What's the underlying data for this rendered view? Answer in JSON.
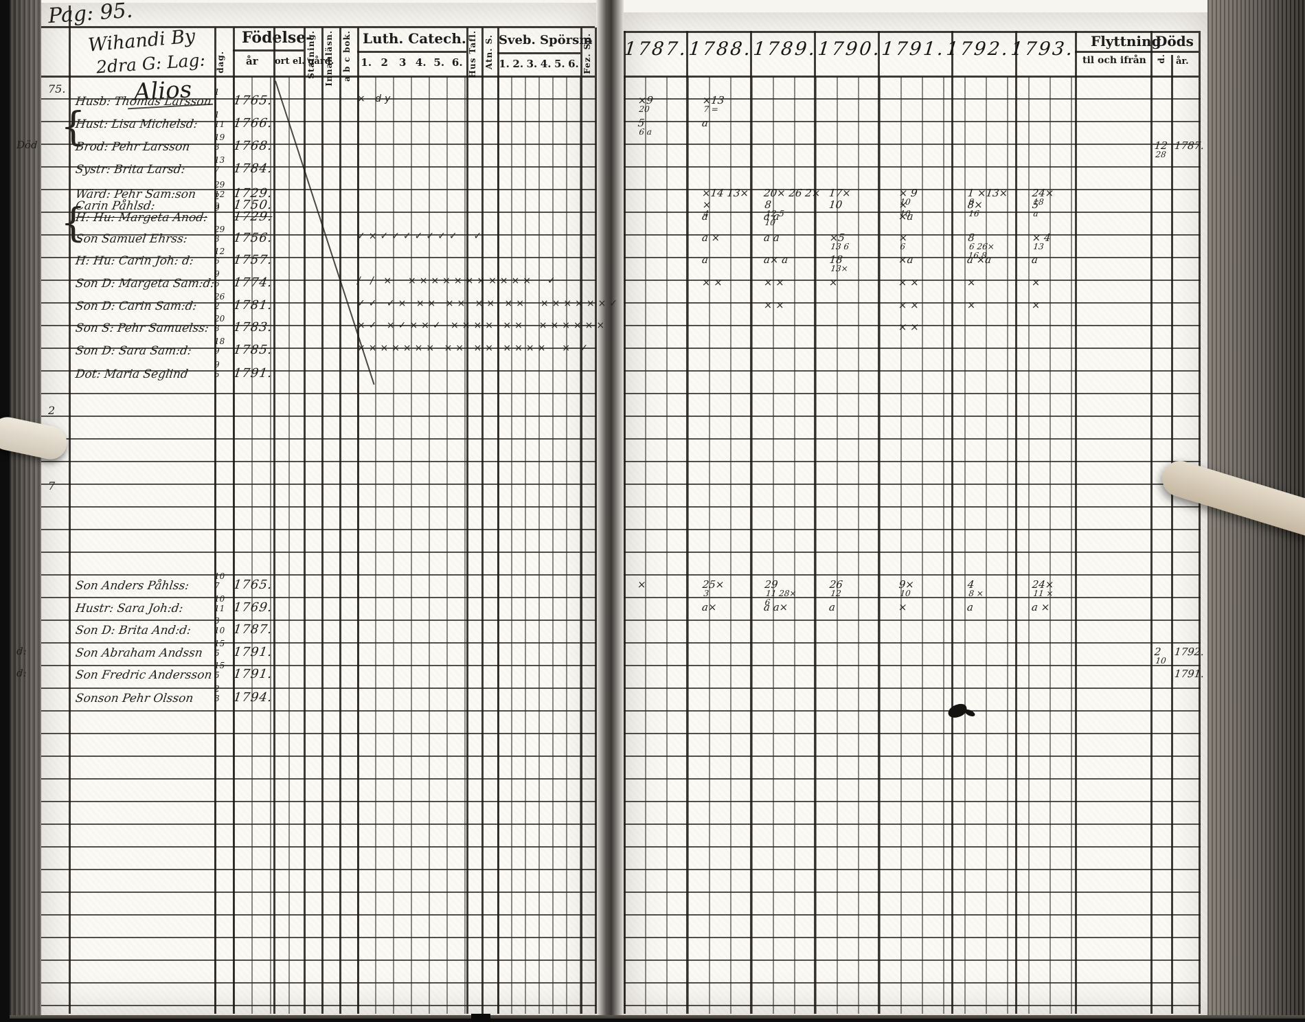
{
  "scan": {
    "page_label": "Pag: 95.",
    "paper_color": "#fbfaf5",
    "ink_color": "#1c1c1c"
  },
  "title_block": {
    "line1": "Wihandi By",
    "line2": "2dra G: Lag:",
    "line3": "Alios"
  },
  "headers": {
    "fodelse": "Födelse-",
    "dag": "dag.",
    "ar": "år",
    "ort": "ort el. gård.",
    "stafning": "Stafning.",
    "innanlasn": "Innanläsn.",
    "abcbok": "a b c bok.",
    "luth": "Luth. Catech.",
    "luth_cols": [
      "1.",
      "2",
      "3",
      "4.",
      "5.",
      "6."
    ],
    "hustafl": "Hus Tafl.",
    "atns": "Atn. S.",
    "sveb": "Sveb. Spörsm",
    "sveb_cols": [
      "1.",
      "2.",
      "3.",
      "4.",
      "5.",
      "6."
    ],
    "fezsp": "Fez. Sp.",
    "years": [
      "1787.",
      "1788.",
      "1789.",
      "1790.",
      "1791.",
      "1792.",
      "1793."
    ],
    "flyttning": "Flyttning",
    "flyttning_sub": "til och ifrån",
    "dods": "Döds",
    "dods_dag": "d.",
    "dods_ar": "år."
  },
  "side_notes": [
    {
      "text": "75."
    },
    {
      "text": "2"
    },
    {
      "text": "7"
    }
  ],
  "icons": {
    "brace": "{"
  },
  "group1": {
    "rows": [
      {
        "margin": "",
        "name": "Husb: Thomas Larsson",
        "d1": "1",
        "d2": "",
        "year": "1765.",
        "cat": "× dy",
        "struck": false
      },
      {
        "margin": "",
        "name": "Hust: Lisa Michelsd:",
        "d1": "1",
        "d2": "11",
        "year": "1766.",
        "cat": "",
        "struck": false
      },
      {
        "margin": "Död",
        "name": "Brod: Pehr Larsson",
        "d1": "19",
        "d2": "3",
        "year": "1768.",
        "cat": "",
        "struck": false
      },
      {
        "margin": "",
        "name": "Systr: Brita Larsd:",
        "d1": "13",
        "d2": "7",
        "year": "1784.",
        "cat": "",
        "struck": false
      },
      {
        "margin": "",
        "name": "Wärd: Pehr Sam:son",
        "d1": "29",
        "d2": "12",
        "year": "1729.",
        "cat": "",
        "struck": false
      },
      {
        "margin": "",
        "name": "Carin Påhlsd:",
        "d1": "2",
        "d2": "9",
        "year": "1750.",
        "cat": "",
        "struck": false
      },
      {
        "margin": "",
        "name": "H: Hu: Margeta Anod:",
        "d1": "9",
        "d2": "",
        "year": "1729.",
        "cat": "",
        "struck": true
      },
      {
        "margin": "",
        "name": "Son Samuel Ehrss:",
        "d1": "29",
        "d2": "3",
        "year": "1756.",
        "cat": "✓×✓✓✓✓✓✓✓  ✓",
        "struck": false
      },
      {
        "margin": "",
        "name": "H: Hu: Carin Joh: d:",
        "d1": "12",
        "d2": "6",
        "year": "1757.",
        "cat": "",
        "struck": false
      },
      {
        "margin": "",
        "name": "Son D: Margeta Sam:d:",
        "d1": "9",
        "d2": "6",
        "year": "1774.",
        "cat": "/ / ×  ×××××××××××  ✓",
        "struck": false
      },
      {
        "margin": "",
        "name": "Son D: Carin Sam:d:",
        "d1": "26",
        "d2": "2",
        "year": "1781.",
        "cat": "✓✓ ✓× ×× ×× ×× ××  ××××××✓",
        "struck": false
      },
      {
        "margin": "",
        "name": "Son S: Pehr Samuelss:",
        "d1": "20",
        "d2": "8",
        "year": "1783.",
        "cat": "×✓ ×✓××✓ ×××× ××  ××××××",
        "struck": false
      },
      {
        "margin": "",
        "name": "Son D: Sara Sam:d:",
        "d1": "18",
        "d2": "9",
        "year": "1785.",
        "cat": "××××××× ×× ×× ××××  × ✓",
        "struck": false
      },
      {
        "margin": "",
        "name": "Dot: Maria Seglind",
        "d1": "9",
        "d2": "5",
        "year": "1791.",
        "cat": "",
        "struck": false
      }
    ]
  },
  "group2": {
    "rows": [
      {
        "margin": "",
        "name": "Son Anders Påhlss:",
        "d1": "10",
        "d2": "7",
        "year": "1765.",
        "cat": "",
        "struck": false
      },
      {
        "margin": "",
        "name": "Hustr: Sara Joh:d:",
        "d1": "10",
        "d2": "11",
        "year": "1769.",
        "cat": "",
        "struck": false
      },
      {
        "margin": "",
        "name": "Son D: Brita And:d:",
        "d1": "3",
        "d2": "10",
        "year": "1787.",
        "cat": "",
        "struck": false
      },
      {
        "margin": "d:",
        "name": "Son Abraham Andssn",
        "d1": "15",
        "d2": "5",
        "year": "1791.",
        "cat": "",
        "struck": false
      },
      {
        "margin": "d:",
        "name": "Son Fredric Andersson",
        "d1": "15",
        "d2": "5",
        "year": "1791.",
        "cat": "",
        "struck": false
      },
      {
        "margin": "",
        "name": "Sonson Pehr Olsson",
        "d1": "2",
        "d2": "3",
        "year": "1794.",
        "cat": "",
        "struck": false
      }
    ]
  },
  "annotations": [
    {
      "g": 1,
      "r": 0,
      "c": "y1787",
      "t": "×9|20"
    },
    {
      "g": 1,
      "r": 0,
      "c": "y1788",
      "t": "×13|7 ="
    },
    {
      "g": 1,
      "r": 1,
      "c": "y1787",
      "t": "5|6 a"
    },
    {
      "g": 1,
      "r": 1,
      "c": "y1788",
      "t": "a"
    },
    {
      "g": 1,
      "r": 2,
      "c": "dd",
      "t": "12|28"
    },
    {
      "g": 1,
      "r": 2,
      "c": "da",
      "t": "1787."
    },
    {
      "g": 1,
      "r": 4,
      "c": "y1788",
      "t": "×14 13×"
    },
    {
      "g": 1,
      "r": 4,
      "c": "y1789",
      "t": "20× 26 2×"
    },
    {
      "g": 1,
      "r": 4,
      "c": "y1790",
      "t": "17×"
    },
    {
      "g": 1,
      "r": 4,
      "c": "y1791",
      "t": "× 9|10"
    },
    {
      "g": 1,
      "r": 4,
      "c": "y1792",
      "t": "1 ×13×|8"
    },
    {
      "g": 1,
      "r": 4,
      "c": "y1793",
      "t": "24×|18"
    },
    {
      "g": 1,
      "r": 5,
      "c": "y1788",
      "t": "×|4"
    },
    {
      "g": 1,
      "r": 5,
      "c": "y1789",
      "t": "8|12 5|10"
    },
    {
      "g": 1,
      "r": 5,
      "c": "y1790",
      "t": "10"
    },
    {
      "g": 1,
      "r": 5,
      "c": "y1791",
      "t": "×|10"
    },
    {
      "g": 1,
      "r": 5,
      "c": "y1792",
      "t": "8×|16"
    },
    {
      "g": 1,
      "r": 5,
      "c": "y1793",
      "t": "5|a"
    },
    {
      "g": 1,
      "r": 6,
      "c": "y1788",
      "t": "a"
    },
    {
      "g": 1,
      "r": 6,
      "c": "y1789",
      "t": "a a"
    },
    {
      "g": 1,
      "r": 6,
      "c": "y1791",
      "t": "×a"
    },
    {
      "g": 1,
      "r": 7,
      "c": "y1788",
      "t": "a ×"
    },
    {
      "g": 1,
      "r": 7,
      "c": "y1789",
      "t": "a a"
    },
    {
      "g": 1,
      "r": 7,
      "c": "y1790",
      "t": "×5|13 6"
    },
    {
      "g": 1,
      "r": 7,
      "c": "y1791",
      "t": "×|6"
    },
    {
      "g": 1,
      "r": 7,
      "c": "y1792",
      "t": "8|6 26×|16 8"
    },
    {
      "g": 1,
      "r": 7,
      "c": "y1793",
      "t": "× 4|13"
    },
    {
      "g": 1,
      "r": 8,
      "c": "y1788",
      "t": "a"
    },
    {
      "g": 1,
      "r": 8,
      "c": "y1789",
      "t": "a× a"
    },
    {
      "g": 1,
      "r": 8,
      "c": "y1790",
      "t": "18|13×"
    },
    {
      "g": 1,
      "r": 8,
      "c": "y1791",
      "t": "×a"
    },
    {
      "g": 1,
      "r": 8,
      "c": "y1792",
      "t": "a ×a"
    },
    {
      "g": 1,
      "r": 8,
      "c": "y1793",
      "t": "a"
    },
    {
      "g": 1,
      "r": 9,
      "c": "y1788",
      "t": "× ×"
    },
    {
      "g": 1,
      "r": 9,
      "c": "y1789",
      "t": "× ×"
    },
    {
      "g": 1,
      "r": 9,
      "c": "y1790",
      "t": "×"
    },
    {
      "g": 1,
      "r": 9,
      "c": "y1791",
      "t": "× ×"
    },
    {
      "g": 1,
      "r": 9,
      "c": "y1792",
      "t": "×"
    },
    {
      "g": 1,
      "r": 9,
      "c": "y1793",
      "t": "×"
    },
    {
      "g": 1,
      "r": 10,
      "c": "y1789",
      "t": "× ×"
    },
    {
      "g": 1,
      "r": 10,
      "c": "y1791",
      "t": "× ×"
    },
    {
      "g": 1,
      "r": 10,
      "c": "y1792",
      "t": "×"
    },
    {
      "g": 1,
      "r": 10,
      "c": "y1793",
      "t": "×"
    },
    {
      "g": 1,
      "r": 11,
      "c": "y1791",
      "t": "× ×"
    },
    {
      "g": 2,
      "r": 0,
      "c": "y1787",
      "t": "×"
    },
    {
      "g": 2,
      "r": 0,
      "c": "y1788",
      "t": "25×|3"
    },
    {
      "g": 2,
      "r": 0,
      "c": "y1789",
      "t": "29|11 28×|6"
    },
    {
      "g": 2,
      "r": 0,
      "c": "y1790",
      "t": "26|12"
    },
    {
      "g": 2,
      "r": 0,
      "c": "y1791",
      "t": "9×|10"
    },
    {
      "g": 2,
      "r": 0,
      "c": "y1792",
      "t": "4|8 ×"
    },
    {
      "g": 2,
      "r": 0,
      "c": "y1793",
      "t": "24×|11 ×"
    },
    {
      "g": 2,
      "r": 1,
      "c": "y1788",
      "t": "a×"
    },
    {
      "g": 2,
      "r": 1,
      "c": "y1789",
      "t": "a a×"
    },
    {
      "g": 2,
      "r": 1,
      "c": "y1790",
      "t": "a"
    },
    {
      "g": 2,
      "r": 1,
      "c": "y1791",
      "t": "×"
    },
    {
      "g": 2,
      "r": 1,
      "c": "y1792",
      "t": "a"
    },
    {
      "g": 2,
      "r": 1,
      "c": "y1793",
      "t": "a ×"
    },
    {
      "g": 2,
      "r": 3,
      "c": "dd",
      "t": "2|10"
    },
    {
      "g": 2,
      "r": 3,
      "c": "da",
      "t": "1792."
    },
    {
      "g": 2,
      "r": 4,
      "c": "da",
      "t": "1791."
    }
  ]
}
